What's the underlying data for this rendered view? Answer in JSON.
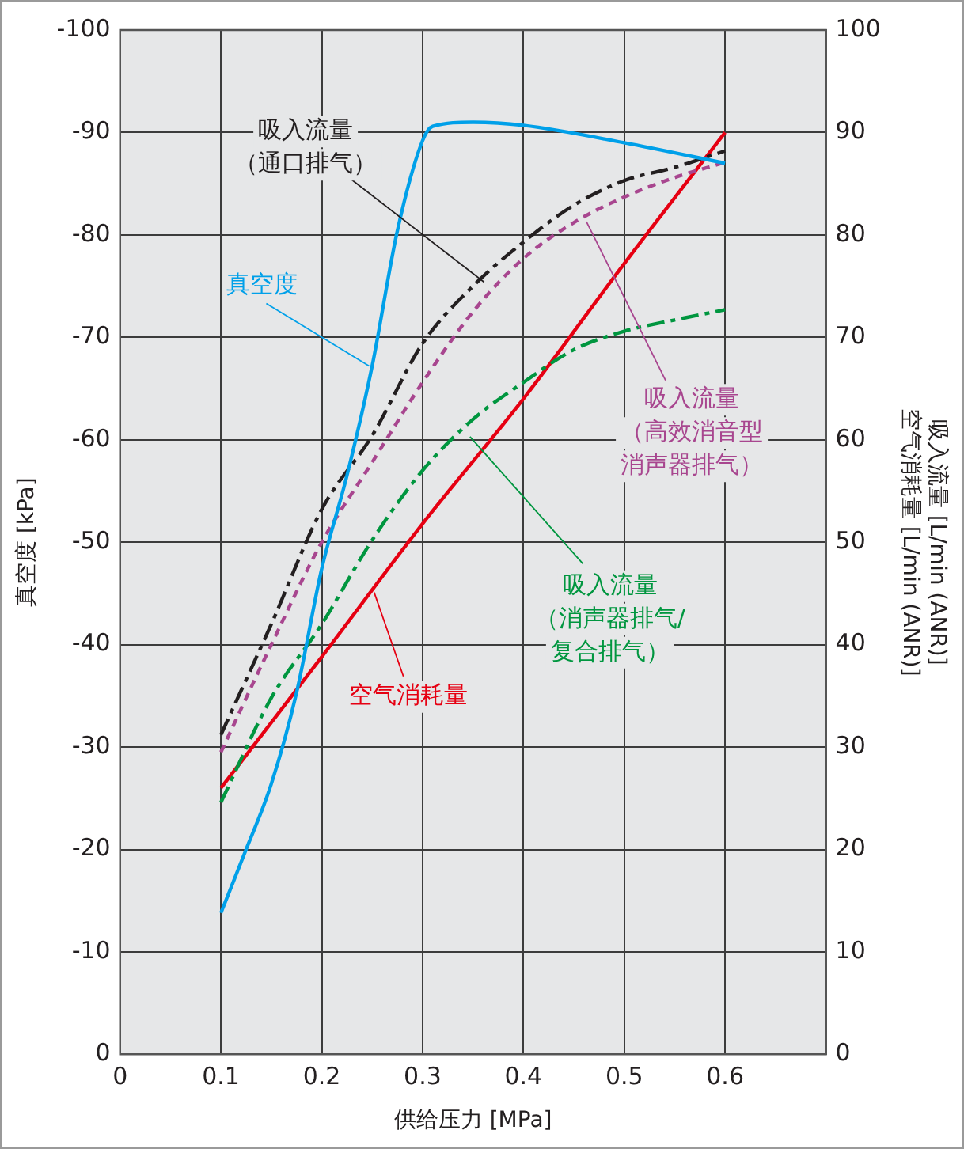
{
  "chart_data": {
    "type": "line",
    "xlabel": "供给压力 [MPa]",
    "ylabel": "真空度 [kPa]",
    "y2label": "吸入流量 [L/min (ANR)]\n空气消耗量 [L/min (ANR)]",
    "xlim": [
      0,
      0.7
    ],
    "xticks": [
      0,
      0.1,
      0.2,
      0.3,
      0.4,
      0.5,
      0.6
    ],
    "ylim": [
      0,
      -100
    ],
    "yticks": [
      0,
      -10,
      -20,
      -30,
      -40,
      -50,
      -60,
      -70,
      -80,
      -90,
      -100
    ],
    "y2lim": [
      0,
      100
    ],
    "y2ticks": [
      0,
      10,
      20,
      30,
      40,
      50,
      60,
      70,
      80,
      90,
      100
    ],
    "grid": true,
    "series": [
      {
        "name": "真空度",
        "color": "#00a0e9",
        "line_style": "solid",
        "x": [
          0.1,
          0.125,
          0.15,
          0.175,
          0.2,
          0.225,
          0.25,
          0.275,
          0.3,
          0.31,
          0.35,
          0.4,
          0.5,
          0.6
        ],
        "values": [
          -13.8,
          -20,
          -26.4,
          -35.3,
          -47.4,
          -56.5,
          -67.2,
          -80.4,
          -89.2,
          -90.6,
          -91,
          -90.7,
          -89,
          -87
        ]
      },
      {
        "name": "吸入流量（通口排气）",
        "color": "#231f20",
        "line_style": "dashed",
        "axis": "y2",
        "x": [
          0.1,
          0.15,
          0.2,
          0.25,
          0.3,
          0.35,
          0.4,
          0.45,
          0.5,
          0.55,
          0.6
        ],
        "values": [
          31.2,
          42,
          53.2,
          60.4,
          69.4,
          75,
          79.3,
          82.9,
          85.3,
          86.6,
          88.2
        ]
      },
      {
        "name": "吸入流量（高效消音型消声器排气）",
        "color": "#a8468f",
        "line_style": "dotted",
        "axis": "y2",
        "x": [
          0.1,
          0.15,
          0.2,
          0.25,
          0.3,
          0.35,
          0.4,
          0.45,
          0.5,
          0.55,
          0.6
        ],
        "values": [
          29.5,
          40,
          50,
          57.8,
          65.6,
          72.5,
          77.7,
          81.2,
          83.7,
          85.6,
          87.1
        ]
      },
      {
        "name": "吸入流量（消声器排气/复合排气）",
        "color": "#00963f",
        "line_style": "dashed",
        "axis": "y2",
        "x": [
          0.1,
          0.15,
          0.2,
          0.25,
          0.3,
          0.35,
          0.4,
          0.45,
          0.5,
          0.55,
          0.6
        ],
        "values": [
          24.6,
          34.8,
          42,
          50.2,
          57,
          62,
          65.6,
          68.8,
          70.6,
          71.7,
          72.7
        ]
      },
      {
        "name": "空气消耗量",
        "color": "#e60012",
        "line_style": "solid",
        "axis": "y2",
        "x": [
          0.1,
          0.2,
          0.3,
          0.4,
          0.5,
          0.6
        ],
        "values": [
          26,
          38.8,
          51.8,
          64,
          77.2,
          90
        ]
      }
    ]
  }
}
